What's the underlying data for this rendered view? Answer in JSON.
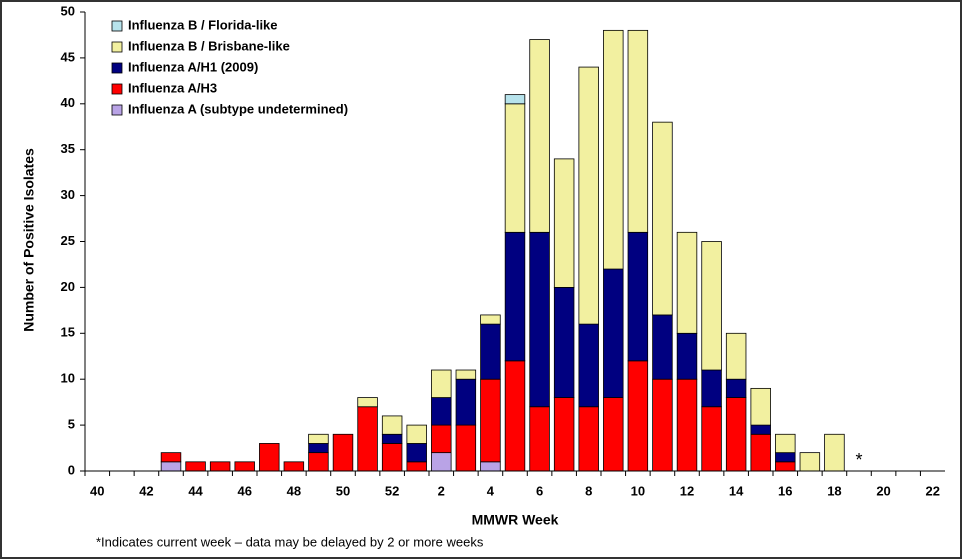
{
  "chart_data": {
    "type": "stacked-bar",
    "y_label": "Number of Positive Isolates",
    "x_label": "MMWR Week",
    "footnote": "*Indicates current week – data may be delayed by 2 or more weeks",
    "annotations": [
      {
        "text": "*",
        "category": 31
      }
    ],
    "categories": [
      "40",
      null,
      "42",
      null,
      "44",
      null,
      "46",
      null,
      "48",
      null,
      "50",
      null,
      "52",
      null,
      "2",
      null,
      "4",
      null,
      "6",
      null,
      "8",
      null,
      "10",
      null,
      "12",
      null,
      "14",
      null,
      "16",
      null,
      "18",
      null,
      "20",
      null,
      "22"
    ],
    "series": [
      {
        "name": "Influenza A (subtype undetermined)",
        "color": "#b9a3e6",
        "values": [
          0,
          0,
          0,
          1,
          0,
          0,
          0,
          0,
          0,
          0,
          0,
          0,
          0,
          0,
          2,
          0,
          1,
          0,
          0,
          0,
          0,
          0,
          0,
          0,
          0,
          0,
          0,
          0,
          0,
          0,
          0,
          0,
          0,
          0,
          0
        ]
      },
      {
        "name": "Influenza A/H3",
        "color": "#ff0000",
        "values": [
          0,
          0,
          0,
          1,
          1,
          1,
          1,
          3,
          1,
          2,
          4,
          7,
          3,
          1,
          3,
          5,
          9,
          12,
          7,
          8,
          7,
          8,
          12,
          10,
          10,
          7,
          8,
          4,
          1,
          0,
          0,
          0,
          0,
          0,
          0
        ]
      },
      {
        "name": "Influenza A/H1 (2009)",
        "color": "#000080",
        "values": [
          0,
          0,
          0,
          0,
          0,
          0,
          0,
          0,
          0,
          1,
          0,
          0,
          1,
          2,
          3,
          5,
          6,
          14,
          19,
          12,
          9,
          14,
          14,
          7,
          5,
          4,
          2,
          1,
          1,
          0,
          0,
          0,
          0,
          0,
          0
        ]
      },
      {
        "name": "Influenza B / Brisbane-like",
        "color": "#f2f0a0",
        "values": [
          0,
          0,
          0,
          0,
          0,
          0,
          0,
          0,
          0,
          1,
          0,
          1,
          2,
          2,
          3,
          1,
          1,
          14,
          21,
          14,
          28,
          26,
          22,
          21,
          11,
          14,
          5,
          4,
          2,
          2,
          4,
          0,
          0,
          0,
          0
        ]
      },
      {
        "name": "Influenza B / Florida-like",
        "color": "#b7e3ec",
        "values": [
          0,
          0,
          0,
          0,
          0,
          0,
          0,
          0,
          0,
          0,
          0,
          0,
          0,
          0,
          0,
          0,
          0,
          1,
          0,
          0,
          0,
          0,
          0,
          0,
          0,
          0,
          0,
          0,
          0,
          0,
          0,
          0,
          0,
          0,
          0
        ]
      }
    ],
    "ylim": [
      0,
      50
    ],
    "yticks": [
      0,
      5,
      10,
      15,
      20,
      25,
      30,
      35,
      40,
      45,
      50
    ],
    "legend": "top-left"
  }
}
